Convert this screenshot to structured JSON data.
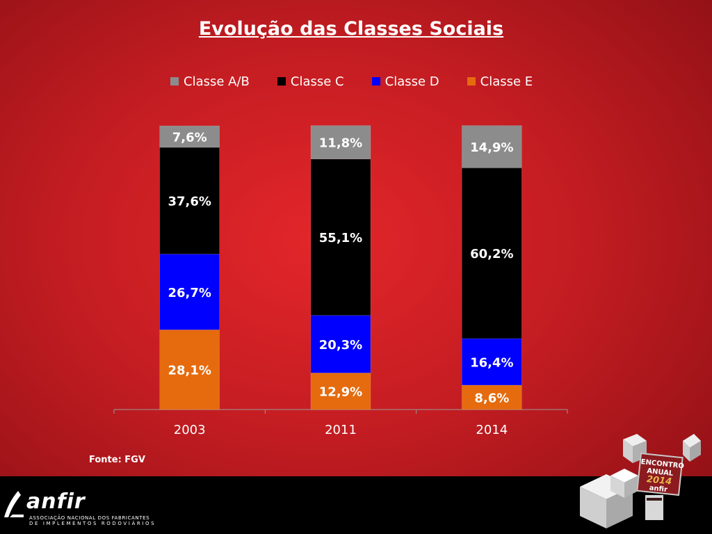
{
  "title": "Evolução das Classes Sociais",
  "source": "Fonte: FGV",
  "logo": {
    "name": "anfir",
    "line1": "ASSOCIAÇÃO NACIONAL DOS FABRICANTES",
    "line2": "DE IMPLEMENTOS RODOVIÁRIOS"
  },
  "badge": {
    "line1": "ENCONTRO",
    "line2": "ANUAL",
    "year": "2014",
    "brand": "anfir"
  },
  "chart_data": {
    "type": "bar",
    "stacked": true,
    "categories": [
      "2003",
      "2011",
      "2014"
    ],
    "series": [
      {
        "name": "Classe E",
        "color": "#e56b0e",
        "values": [
          28.1,
          12.9,
          8.6
        ],
        "labels": [
          "28,1%",
          "12,9%",
          "8,6%"
        ]
      },
      {
        "name": "Classe D",
        "color": "#0000ff",
        "values": [
          26.7,
          20.3,
          16.4
        ],
        "labels": [
          "26,7%",
          "20,3%",
          "16,4%"
        ]
      },
      {
        "name": "Classe C",
        "color": "#000000",
        "values": [
          37.6,
          55.1,
          60.2
        ],
        "labels": [
          "37,6%",
          "55,1%",
          "60,2%"
        ]
      },
      {
        "name": "Classe A/B",
        "color": "#8c8c8c",
        "values": [
          7.6,
          11.8,
          14.9
        ],
        "labels": [
          "7,6%",
          "11,8%",
          "14,9%"
        ]
      }
    ],
    "legend_order": [
      "Classe A/B",
      "Classe C",
      "Classe D",
      "Classe E"
    ],
    "legend_position": "top",
    "ylim": [
      0,
      100
    ],
    "grid": false
  }
}
